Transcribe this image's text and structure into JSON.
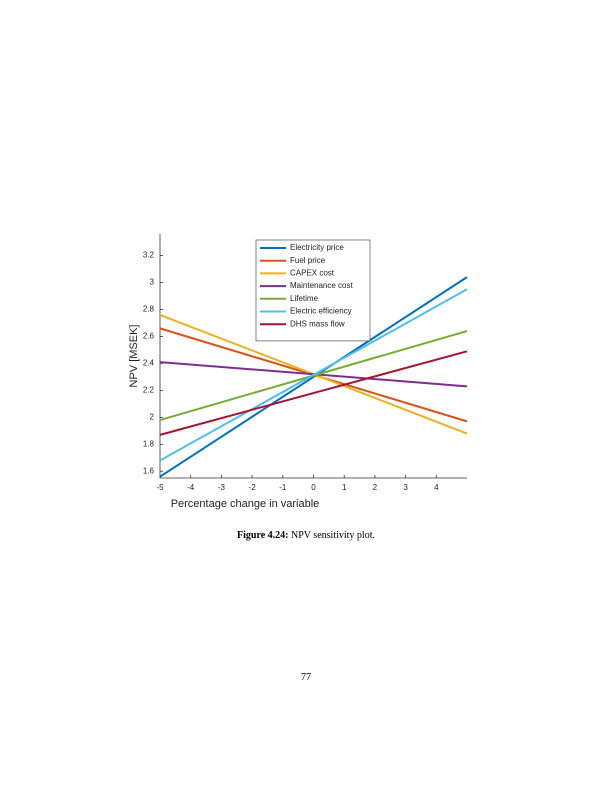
{
  "chart_data": {
    "type": "line",
    "xlabel": "Percentage change in variable",
    "ylabel": "NPV [MSEK]",
    "x": [
      -5,
      5
    ],
    "series": [
      {
        "name": "Electricity price",
        "color": "#0072bd",
        "values": [
          1.56,
          3.04
        ]
      },
      {
        "name": "Fuel price",
        "color": "#d95319",
        "values": [
          2.66,
          1.97
        ]
      },
      {
        "name": "CAPEX cost",
        "color": "#edb120",
        "values": [
          2.76,
          1.88
        ]
      },
      {
        "name": "Maintenance cost",
        "color": "#7e2f8e",
        "values": [
          2.41,
          2.23
        ]
      },
      {
        "name": "Lifetime",
        "color": "#77ac30",
        "values": [
          1.98,
          2.64
        ]
      },
      {
        "name": "Electric efficiency",
        "color": "#4dbeee",
        "values": [
          1.68,
          2.95
        ]
      },
      {
        "name": "DHS mass flow",
        "color": "#a2142f",
        "values": [
          1.87,
          2.49
        ]
      }
    ],
    "xlim": [
      -5,
      5
    ],
    "xticks": [
      -5,
      -4,
      -3,
      -2,
      -1,
      0,
      1,
      2,
      3,
      4
    ],
    "ylim": [
      1.55,
      3.36
    ],
    "yticks": [
      1.6,
      1.8,
      2,
      2.2,
      2.4,
      2.6,
      2.8,
      3,
      3.2
    ],
    "grid": false,
    "legend": "top"
  },
  "caption": {
    "label": "Figure 4.24:",
    "text": "NPV sensitivity plot."
  },
  "page_number": "77"
}
